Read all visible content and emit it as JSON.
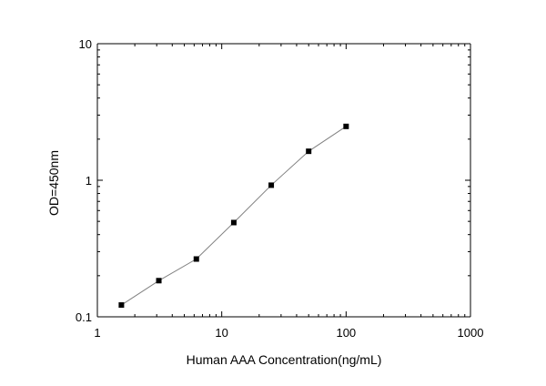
{
  "chart_data": {
    "type": "line",
    "x_scale": "log",
    "y_scale": "log",
    "xlabel": "Human AAA Concentration(ng/mL)",
    "ylabel": "OD=450nm",
    "xlim": [
      1,
      1000
    ],
    "ylim": [
      0.1,
      10
    ],
    "x_ticks": [
      {
        "value": 1,
        "label": "1"
      },
      {
        "value": 10,
        "label": "10"
      },
      {
        "value": 100,
        "label": "100"
      },
      {
        "value": 1000,
        "label": "1000"
      }
    ],
    "y_ticks": [
      {
        "value": 0.1,
        "label": "0.1"
      },
      {
        "value": 1,
        "label": "1"
      },
      {
        "value": 10,
        "label": "10"
      }
    ],
    "grid": false,
    "series": [
      {
        "marker": "square",
        "line_color": "#808080",
        "marker_color": "#000000",
        "x": [
          1.56,
          3.12,
          6.25,
          12.5,
          25,
          50,
          100
        ],
        "y": [
          0.122,
          0.184,
          0.265,
          0.49,
          0.92,
          1.63,
          2.48
        ]
      }
    ]
  }
}
